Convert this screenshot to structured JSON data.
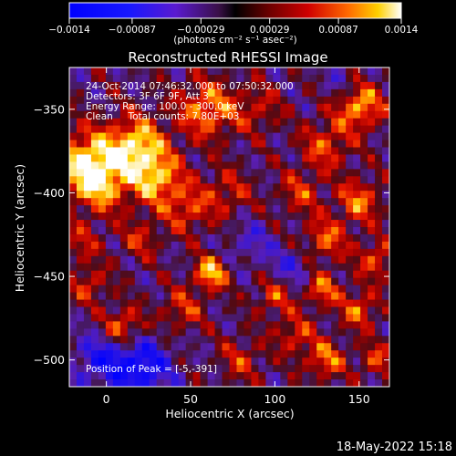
{
  "chart_data": {
    "type": "heatmap",
    "title": "Reconstructed RHESSI Image",
    "xlabel": "Heliocentric X (arcsec)",
    "ylabel": "Heliocentric Y (arcsec)",
    "xlim": [
      -22,
      168
    ],
    "ylim": [
      -516,
      -325
    ],
    "x_ticks": [
      0,
      50,
      100,
      150
    ],
    "y_ticks": [
      -350,
      -400,
      -450,
      -500
    ],
    "colorbar": {
      "label": "(photons cm⁻² s⁻¹ asec⁻²)",
      "range": [
        -0.0014,
        0.0014
      ],
      "tick_values": [
        -0.0014,
        -0.00087,
        -0.00029,
        0.00029,
        0.00087,
        0.0014
      ],
      "tick_labels": [
        "−0.0014",
        "−0.00087",
        "−0.00029",
        "0.00029",
        "0.00087",
        "0.0014"
      ]
    },
    "annotations": {
      "time": "24-Oct-2014 07:46:32.000 to 07:50:32.000",
      "detectors": "Detectors: 3F 6F 9F, Att 3",
      "energy": "Energy Range: 100.0 - 300.0 keV",
      "clean": "Clean     Total counts: 7.80E+03",
      "peak": "Position of Peak = [-5,-391]"
    },
    "peak_position": [
      -5,
      -391
    ],
    "footer_date": "18-May-2022 15:18"
  }
}
